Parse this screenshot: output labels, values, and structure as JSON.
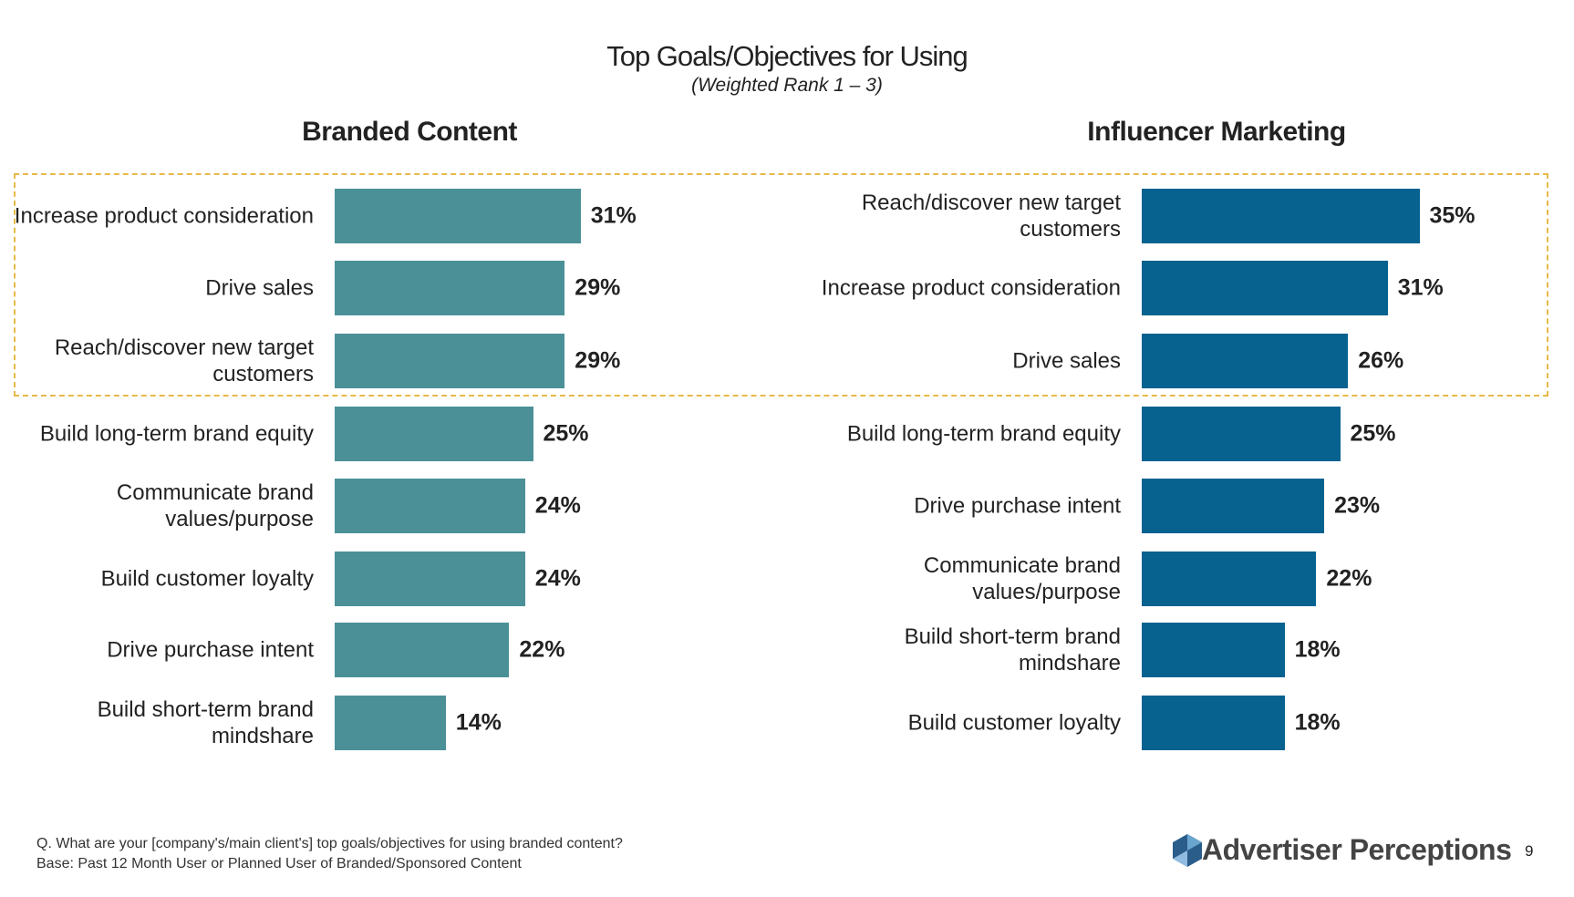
{
  "title": "Top Goals/Objectives for Using",
  "subtitle": "(Weighted Rank 1 – 3)",
  "chart_data": [
    {
      "type": "bar",
      "orientation": "horizontal",
      "title": "Branded Content",
      "color": "#4b9097",
      "categories": [
        "Increase product consideration",
        "Drive sales",
        "Reach/discover new target customers",
        "Build long-term brand equity",
        "Communicate brand values/purpose",
        "Build customer loyalty",
        "Drive purchase intent",
        "Build short-term brand mindshare"
      ],
      "values": [
        31,
        29,
        29,
        25,
        24,
        24,
        22,
        14
      ],
      "value_labels": [
        "31%",
        "29%",
        "29%",
        "25%",
        "24%",
        "24%",
        "22%",
        "14%"
      ]
    },
    {
      "type": "bar",
      "orientation": "horizontal",
      "title": "Influencer Marketing",
      "color": "#07628f",
      "categories": [
        "Reach/discover new target customers",
        "Increase product consideration",
        "Drive sales",
        "Build long-term brand equity",
        "Drive purchase intent",
        "Communicate brand values/purpose",
        "Build short-term brand mindshare",
        "Build customer loyalty"
      ],
      "values": [
        35,
        31,
        26,
        25,
        23,
        22,
        18,
        18
      ],
      "value_labels": [
        "35%",
        "31%",
        "26%",
        "25%",
        "23%",
        "22%",
        "18%",
        "18%"
      ]
    }
  ],
  "footnote": [
    "Q. What are your [company's/main client's] top goals/objectives for using branded content?",
    "Base: Past 12 Month User or Planned User of Branded/Sponsored Content"
  ],
  "logo": "Advertiser Perceptions",
  "page_number": "9"
}
